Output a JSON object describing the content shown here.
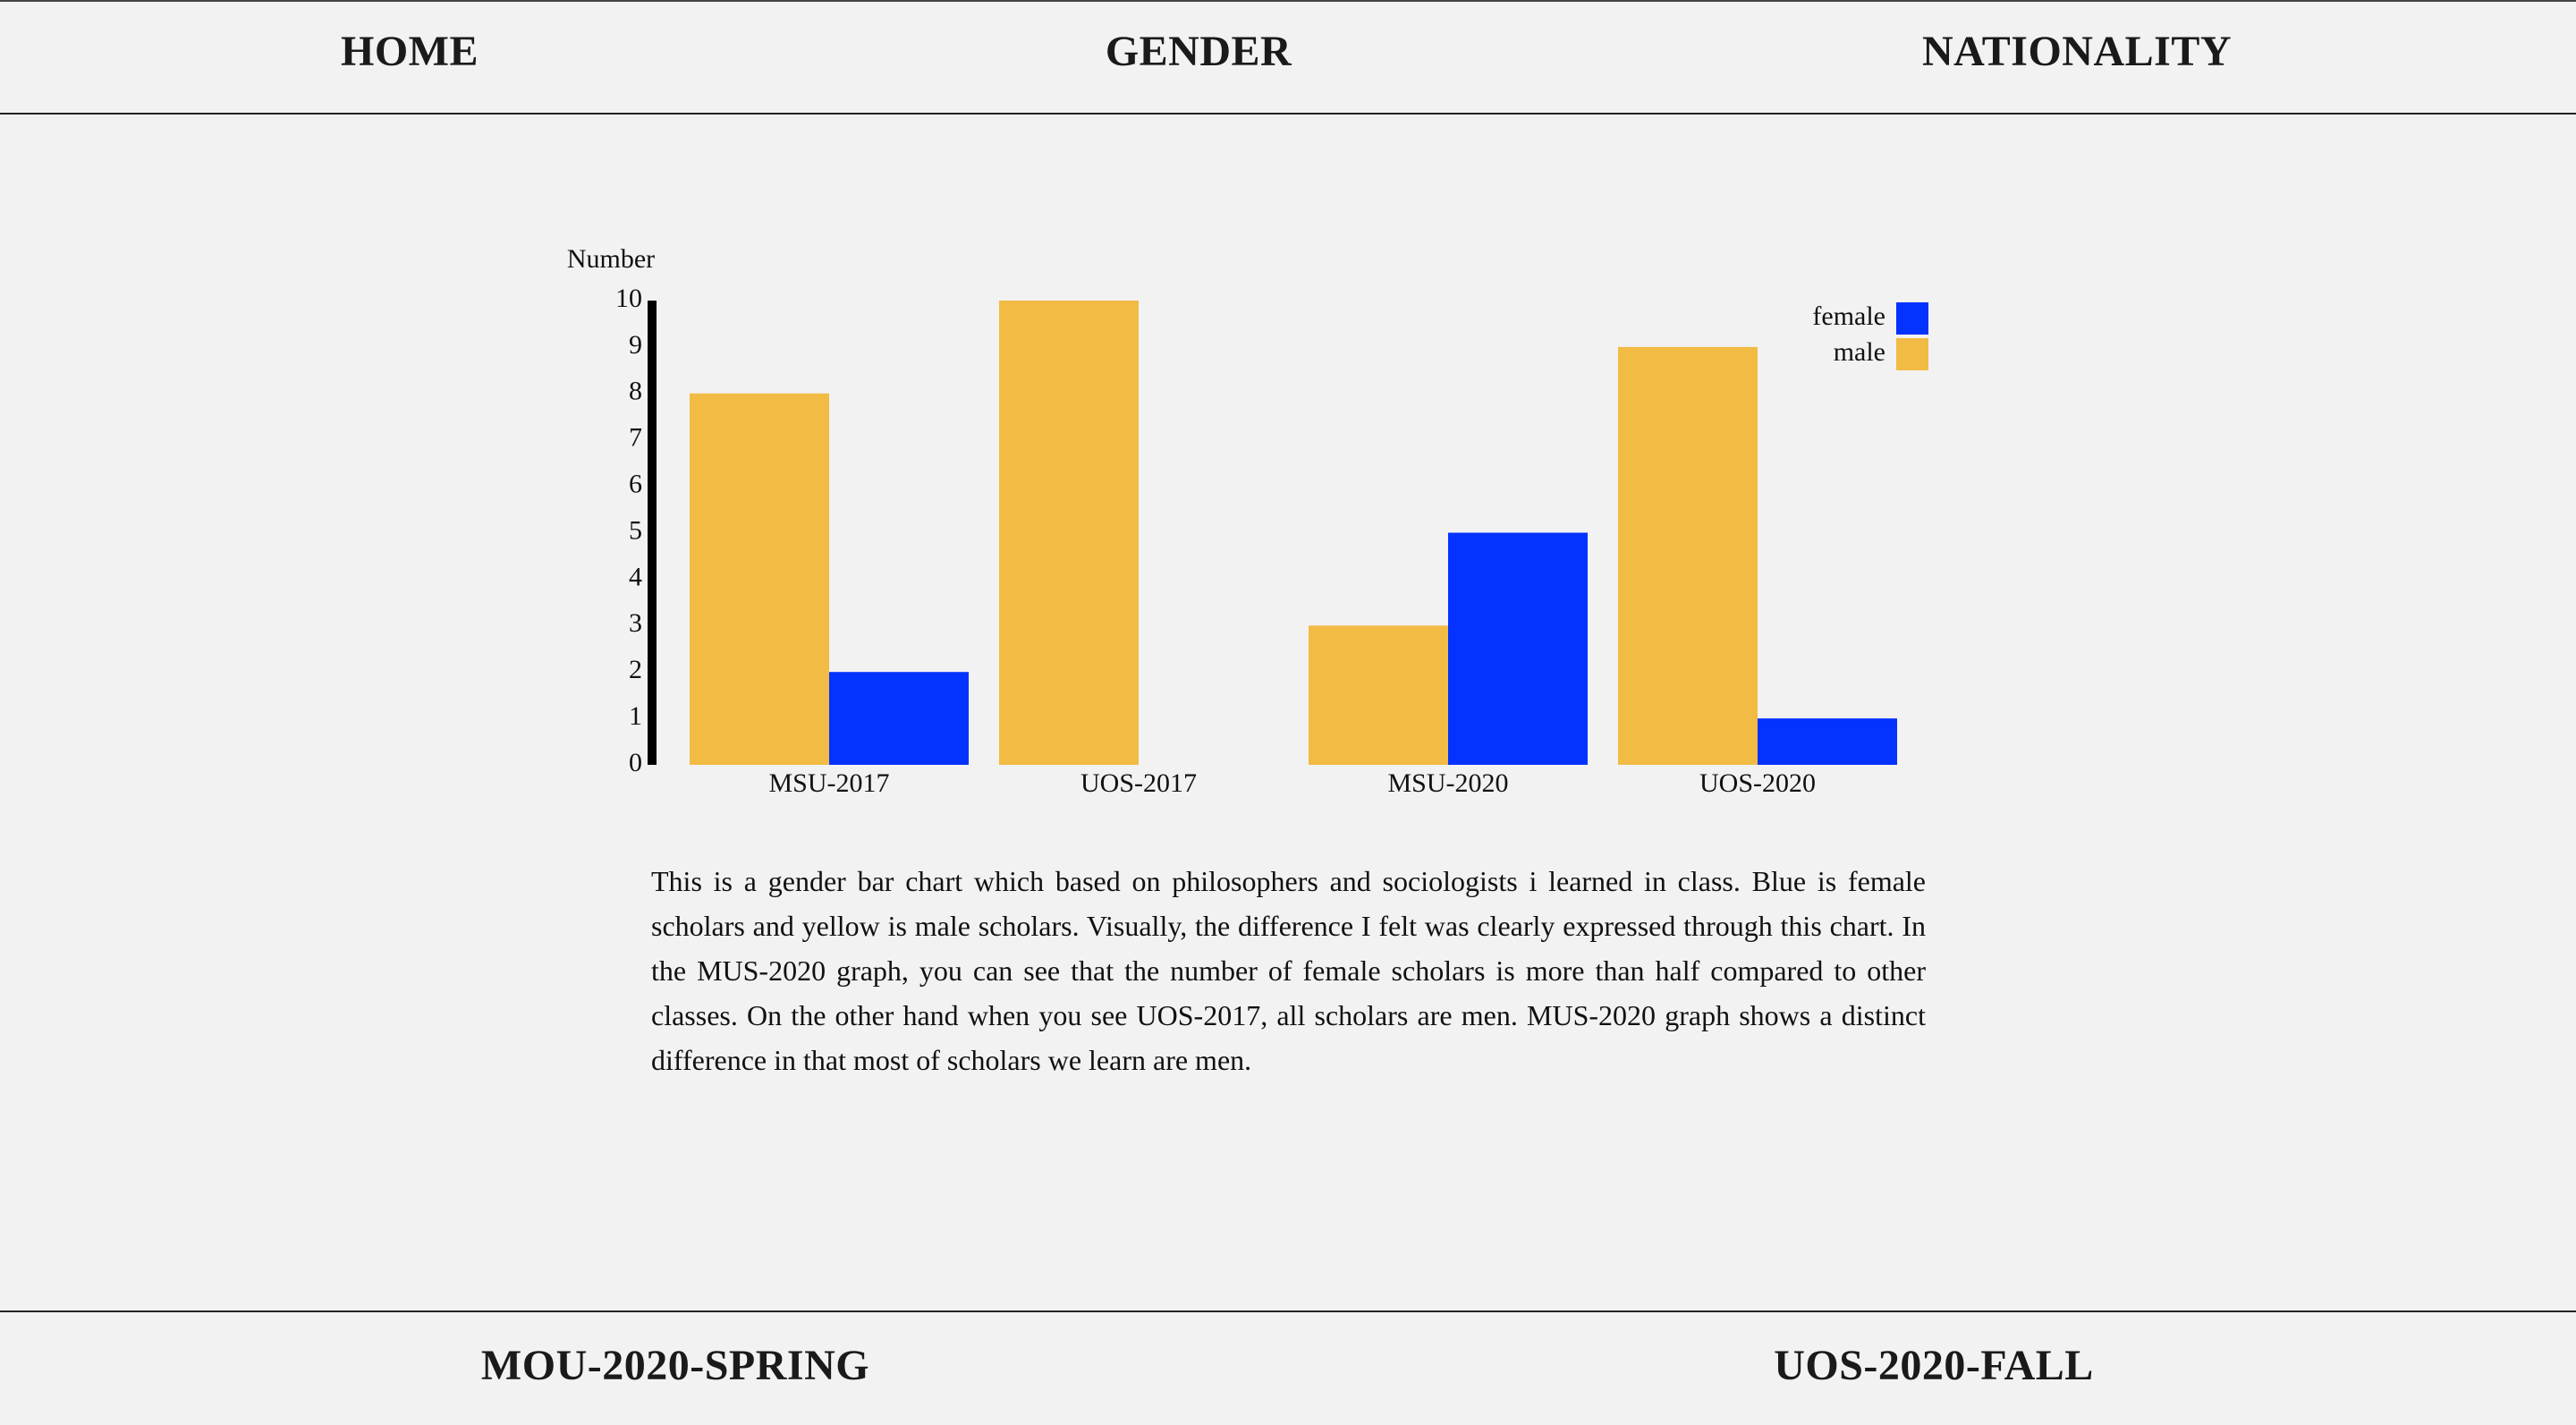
{
  "top_nav": {
    "home": "HOME",
    "gender": "GENDER",
    "nationality": "NATIONALITY"
  },
  "chart_data": {
    "type": "bar",
    "ylabel": "Number",
    "ylim": [
      0,
      10
    ],
    "yticks": [
      0,
      1,
      2,
      3,
      4,
      5,
      6,
      7,
      8,
      9,
      10
    ],
    "categories": [
      "MSU-2017",
      "UOS-2017",
      "MSU-2020",
      "UOS-2020"
    ],
    "series": [
      {
        "name": "male",
        "color": "#f2bb44",
        "values": [
          8,
          10,
          3,
          9
        ]
      },
      {
        "name": "female",
        "color": "#0432ff",
        "values": [
          2,
          0,
          5,
          1
        ]
      }
    ],
    "legend_order": [
      "female",
      "male"
    ],
    "legend_position": "top-right",
    "grid": false
  },
  "description": "This is a gender bar chart which based on philosophers and sociologists i learned in class. Blue is female scholars and yellow is male scholars. Visually, the difference I felt was clearly expressed through this chart. In the MUS-2020 graph, you can see that the number of female scholars is more than half compared to other classes. On the other hand when you see UOS-2017, all scholars are men. MUS-2020 graph shows a distinct difference in that most of scholars we learn are men.",
  "bottom_nav": {
    "spring": "MOU-2020-SPRING",
    "fall": "UOS-2020-FALL"
  }
}
